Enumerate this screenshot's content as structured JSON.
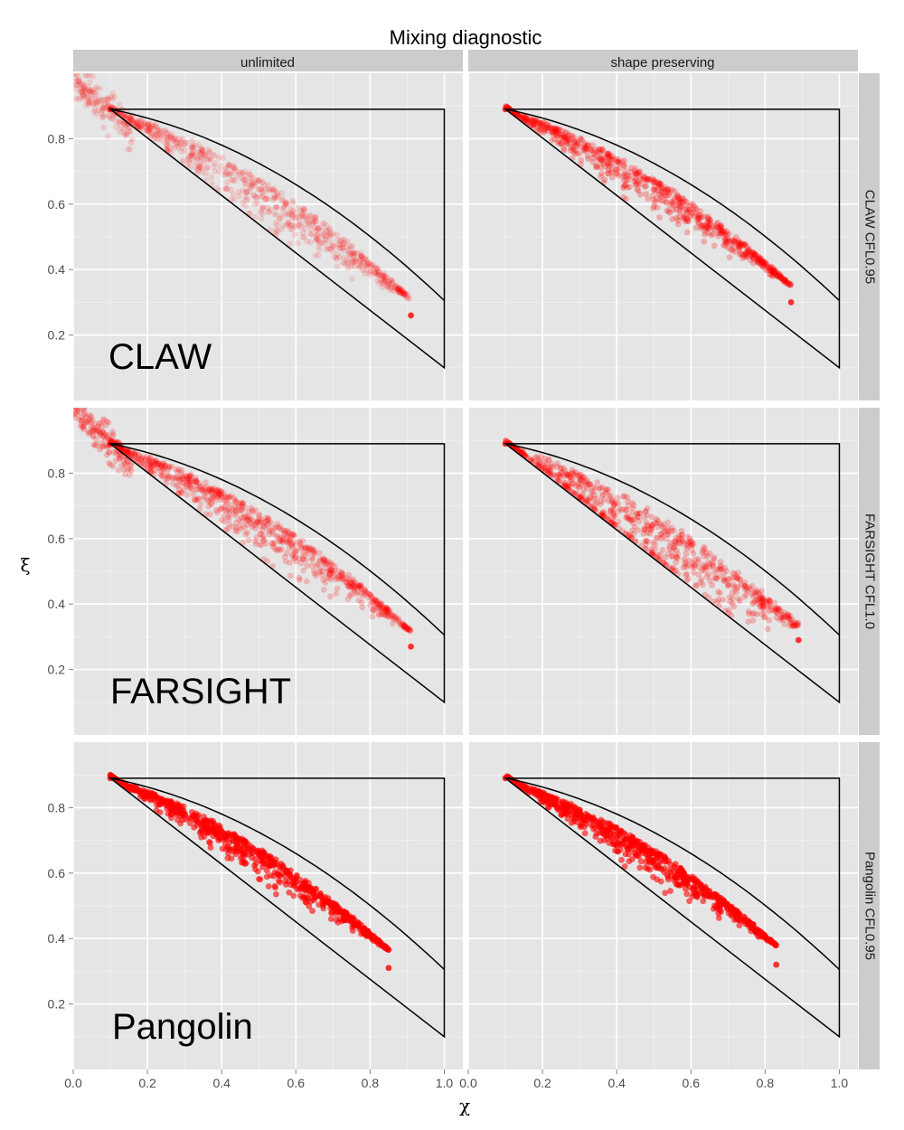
{
  "chart_data": {
    "type": "scatter",
    "title": "Mixing diagnostic",
    "xlabel": "χ",
    "ylabel": "ξ",
    "xlim": [
      0.0,
      1.05
    ],
    "ylim": [
      0.0,
      1.0
    ],
    "x_ticks": [
      "0.0",
      "0.2",
      "0.4",
      "0.6",
      "0.8",
      "1.0"
    ],
    "y_ticks": [
      "0.2",
      "0.4",
      "0.6",
      "0.8"
    ],
    "x_tick_values": [
      0.0,
      0.2,
      0.4,
      0.6,
      0.8,
      1.0
    ],
    "y_tick_values": [
      0.2,
      0.4,
      0.6,
      0.8
    ],
    "grid": true,
    "point_color": "#ff0000",
    "panel_background": "#e5e5e5",
    "strip_background": "#cccccc",
    "columns": [
      "unlimited",
      "shape preserving"
    ],
    "rows": [
      "CLAW CFL0.95",
      "FARSIGHT CFL1.0",
      "Pangolin CFL0.95"
    ],
    "row_labels": [
      "CLAW",
      "FARSIGHT",
      "Pangolin"
    ],
    "reference_region": {
      "corners": [
        [
          0.1,
          0.89
        ],
        [
          1.0,
          0.89
        ],
        [
          1.0,
          0.1
        ]
      ],
      "lower_line": [
        [
          0.1,
          0.89
        ],
        [
          1.0,
          0.1
        ]
      ],
      "upper_curve": "quadratic through (0.1, 0.89), (0.5, 0.6882), (1.0, 0.1)"
    },
    "panels": [
      {
        "row": "CLAW CFL0.95",
        "column": "unlimited",
        "x_range": [
          0.0,
          0.91
        ],
        "y_at_end": 0.26,
        "spread": 0.07,
        "opacity": 0.12,
        "overshoot": [
          [
            0.0,
            0.98
          ],
          [
            0.16,
            0.83
          ]
        ]
      },
      {
        "row": "CLAW CFL0.95",
        "column": "shape preserving",
        "x_range": [
          0.1,
          0.87
        ],
        "y_at_end": 0.3,
        "spread": 0.05,
        "opacity": 0.25
      },
      {
        "row": "FARSIGHT CFL1.0",
        "column": "unlimited",
        "x_range": [
          0.0,
          0.91
        ],
        "y_at_end": 0.27,
        "spread": 0.06,
        "opacity": 0.2,
        "overshoot": [
          [
            0.0,
            1.0
          ],
          [
            0.16,
            0.82
          ]
        ]
      },
      {
        "row": "FARSIGHT CFL1.0",
        "column": "shape preserving",
        "x_range": [
          0.1,
          0.89
        ],
        "y_at_end": 0.29,
        "spread": 0.11,
        "opacity": 0.22
      },
      {
        "row": "Pangolin CFL0.95",
        "column": "unlimited",
        "x_range": [
          0.09,
          0.85
        ],
        "y_at_end": 0.31,
        "spread": 0.04,
        "opacity": 0.6
      },
      {
        "row": "Pangolin CFL0.95",
        "column": "shape preserving",
        "x_range": [
          0.1,
          0.83
        ],
        "y_at_end": 0.32,
        "spread": 0.04,
        "opacity": 0.6
      }
    ]
  }
}
